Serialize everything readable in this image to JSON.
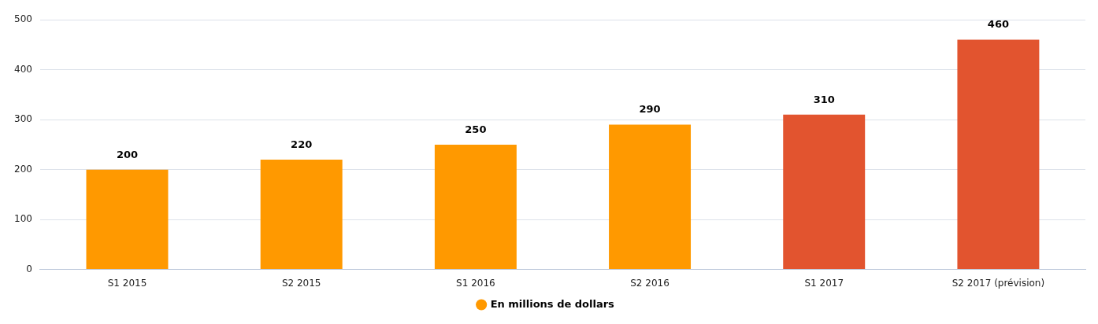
{
  "chart_data": {
    "type": "bar",
    "categories": [
      "S1 2015",
      "S2 2015",
      "S1 2016",
      "S2 2016",
      "S1 2017",
      "S2 2017 (prévision)"
    ],
    "series": [
      {
        "name": "En millions de dollars",
        "color": "#ff9900",
        "colors": [
          "#ff9900",
          "#ff9900",
          "#ff9900",
          "#ff9900",
          "#e2542f",
          "#e2542f"
        ],
        "values": [
          200,
          220,
          250,
          290,
          310,
          460
        ]
      }
    ],
    "ylim": [
      0,
      500
    ],
    "yticks": [
      0,
      100,
      200,
      300,
      400,
      500
    ],
    "grid": "y",
    "legend": "bottom",
    "data_labels": true
  }
}
